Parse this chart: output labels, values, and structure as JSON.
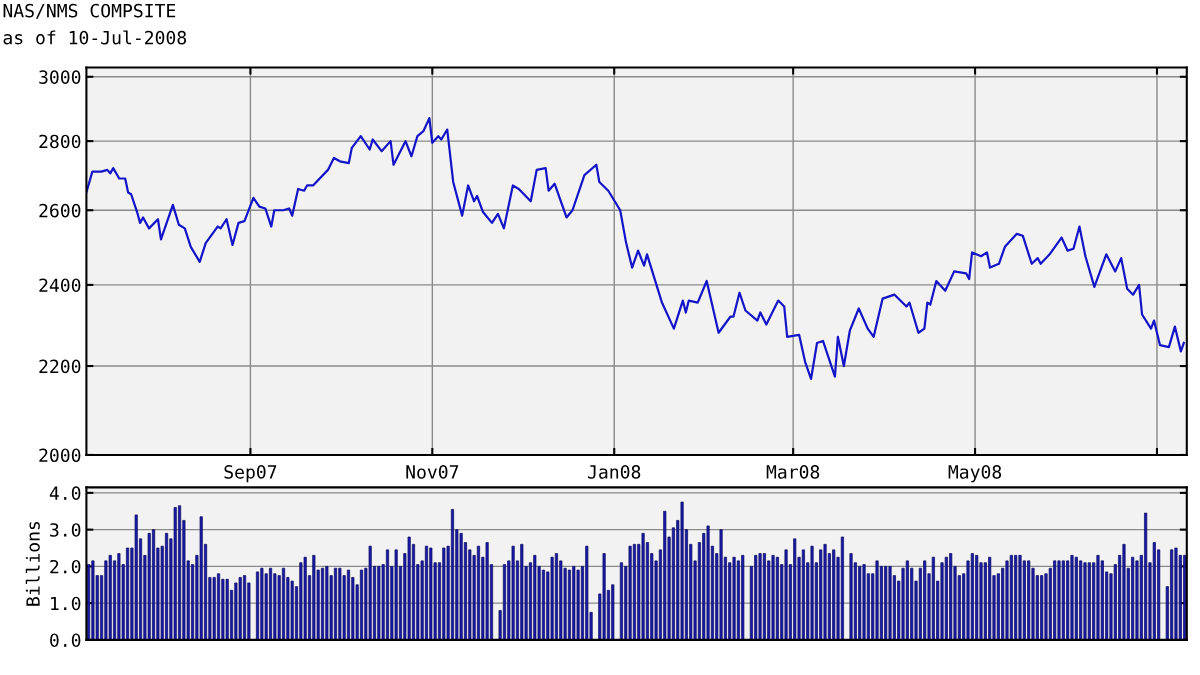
{
  "chart_data": [
    {
      "type": "line",
      "title": "NAS/NMS COMPSITE",
      "subtitle": "as of 10-Jul-2008",
      "color": "#1414c8",
      "log": true,
      "grid": true,
      "xlim": [
        "2007-07-08",
        "2008-07-11"
      ],
      "xticks": [
        {
          "value": "2007-09-01",
          "label": "Sep07"
        },
        {
          "value": "2007-11-01",
          "label": "Nov07"
        },
        {
          "value": "2008-01-01",
          "label": "Jan08"
        },
        {
          "value": "2008-03-01",
          "label": "Mar08"
        },
        {
          "value": "2008-05-01",
          "label": "May08"
        },
        {
          "value": "2008-07-01",
          "label": null
        }
      ],
      "ylim": [
        2000,
        3030
      ],
      "yticks": [
        2000,
        2200,
        2400,
        2600,
        2800,
        3000
      ],
      "x": [
        "2007-07-08",
        "2007-07-10",
        "2007-07-13",
        "2007-07-15",
        "2007-07-16",
        "2007-07-17",
        "2007-07-19",
        "2007-07-21",
        "2007-07-22",
        "2007-07-23",
        "2007-07-25",
        "2007-07-26",
        "2007-07-27",
        "2007-07-29",
        "2007-08-01",
        "2007-08-02",
        "2007-08-06",
        "2007-08-08",
        "2007-08-10",
        "2007-08-12",
        "2007-08-15",
        "2007-08-17",
        "2007-08-21",
        "2007-08-22",
        "2007-08-24",
        "2007-08-26",
        "2007-08-28",
        "2007-08-30",
        "2007-09-02",
        "2007-09-04",
        "2007-09-06",
        "2007-09-08",
        "2007-09-09",
        "2007-09-12",
        "2007-09-14",
        "2007-09-15",
        "2007-09-17",
        "2007-09-19",
        "2007-09-20",
        "2007-09-22",
        "2007-09-27",
        "2007-09-29",
        "2007-10-01",
        "2007-10-04",
        "2007-10-05",
        "2007-10-08",
        "2007-10-11",
        "2007-10-12",
        "2007-10-15",
        "2007-10-18",
        "2007-10-19",
        "2007-10-23",
        "2007-10-25",
        "2007-10-27",
        "2007-10-29",
        "2007-10-31",
        "2007-11-01",
        "2007-11-03",
        "2007-11-04",
        "2007-11-06",
        "2007-11-08",
        "2007-11-11",
        "2007-11-13",
        "2007-11-15",
        "2007-11-16",
        "2007-11-18",
        "2007-11-21",
        "2007-11-23",
        "2007-11-25",
        "2007-11-28",
        "2007-11-30",
        "2007-12-04",
        "2007-12-06",
        "2007-12-09",
        "2007-12-10",
        "2007-12-12",
        "2007-12-16",
        "2007-12-18",
        "2007-12-22",
        "2007-12-26",
        "2007-12-27",
        "2007-12-30",
        "2008-01-03",
        "2008-01-05",
        "2008-01-07",
        "2008-01-09",
        "2008-01-11",
        "2008-01-12",
        "2008-01-17",
        "2008-01-21",
        "2008-01-24",
        "2008-01-25",
        "2008-01-26",
        "2008-01-29",
        "2008-02-01",
        "2008-02-05",
        "2008-02-09",
        "2008-02-10",
        "2008-02-12",
        "2008-02-14",
        "2008-02-18",
        "2008-02-19",
        "2008-02-21",
        "2008-02-25",
        "2008-02-27",
        "2008-02-28",
        "2008-03-03",
        "2008-03-05",
        "2008-03-07",
        "2008-03-09",
        "2008-03-11",
        "2008-03-15",
        "2008-03-16",
        "2008-03-18",
        "2008-03-20",
        "2008-03-23",
        "2008-03-26",
        "2008-03-28",
        "2008-03-31",
        "2008-04-04",
        "2008-04-08",
        "2008-04-09",
        "2008-04-12",
        "2008-04-14",
        "2008-04-15",
        "2008-04-16",
        "2008-04-18",
        "2008-04-21",
        "2008-04-24",
        "2008-04-28",
        "2008-04-29",
        "2008-04-30",
        "2008-05-03",
        "2008-05-05",
        "2008-05-06",
        "2008-05-09",
        "2008-05-11",
        "2008-05-15",
        "2008-05-17",
        "2008-05-20",
        "2008-05-22",
        "2008-05-23",
        "2008-05-26",
        "2008-05-30",
        "2008-06-01",
        "2008-06-03",
        "2008-06-05",
        "2008-06-07",
        "2008-06-10",
        "2008-06-14",
        "2008-06-17",
        "2008-06-19",
        "2008-06-21",
        "2008-06-23",
        "2008-06-25",
        "2008-06-26",
        "2008-06-29",
        "2008-06-30",
        "2008-07-02",
        "2008-07-05",
        "2008-07-07",
        "2008-07-09",
        "2008-07-10"
      ],
      "values": [
        2650,
        2710,
        2710,
        2715,
        2705,
        2720,
        2690,
        2690,
        2650,
        2645,
        2595,
        2565,
        2580,
        2550,
        2575,
        2520,
        2615,
        2560,
        2550,
        2500,
        2460,
        2510,
        2555,
        2550,
        2575,
        2505,
        2565,
        2570,
        2635,
        2610,
        2605,
        2555,
        2600,
        2600,
        2605,
        2585,
        2660,
        2655,
        2670,
        2670,
        2715,
        2750,
        2740,
        2735,
        2780,
        2815,
        2775,
        2805,
        2770,
        2800,
        2730,
        2800,
        2755,
        2815,
        2830,
        2870,
        2795,
        2815,
        2805,
        2835,
        2680,
        2585,
        2670,
        2625,
        2640,
        2595,
        2565,
        2590,
        2550,
        2670,
        2660,
        2625,
        2715,
        2720,
        2655,
        2675,
        2580,
        2600,
        2700,
        2730,
        2680,
        2655,
        2600,
        2510,
        2445,
        2490,
        2450,
        2480,
        2355,
        2290,
        2360,
        2330,
        2360,
        2355,
        2410,
        2280,
        2320,
        2320,
        2380,
        2335,
        2310,
        2330,
        2300,
        2360,
        2345,
        2270,
        2275,
        2210,
        2170,
        2255,
        2260,
        2175,
        2270,
        2200,
        2285,
        2340,
        2290,
        2270,
        2365,
        2375,
        2345,
        2355,
        2280,
        2290,
        2355,
        2350,
        2410,
        2385,
        2435,
        2430,
        2415,
        2485,
        2475,
        2485,
        2445,
        2455,
        2500,
        2535,
        2530,
        2455,
        2470,
        2455,
        2480,
        2525,
        2490,
        2495,
        2555,
        2475,
        2395,
        2480,
        2435,
        2470,
        2390,
        2375,
        2400,
        2325,
        2290,
        2310,
        2250,
        2245,
        2295,
        2235,
        2255
      ]
    },
    {
      "type": "bar",
      "ylabel": "Billions",
      "color": "#1a1aa8",
      "grid": "y",
      "ylim": [
        0,
        4.15
      ],
      "yticks": [
        {
          "value": 0,
          "label": "0.0"
        },
        {
          "value": 1,
          "label": "1.0"
        },
        {
          "value": 2,
          "label": "2.0"
        },
        {
          "value": 3,
          "label": "3.0"
        },
        {
          "value": 4,
          "label": "4.0"
        }
      ],
      "categories": [
        null,
        null,
        null,
        null,
        null,
        null,
        null,
        null,
        null,
        null,
        null,
        null,
        null,
        null,
        null,
        null,
        null,
        null,
        null,
        null,
        null,
        null,
        null,
        null,
        null,
        null,
        null,
        null,
        null,
        null,
        null,
        null,
        null,
        null,
        null,
        null,
        null,
        null,
        null,
        null,
        null,
        null,
        null,
        null,
        null,
        null,
        null,
        null,
        null,
        null,
        null,
        null,
        null,
        null,
        null,
        null,
        null,
        null,
        null,
        null,
        null,
        null,
        null,
        null,
        null,
        null,
        null,
        null,
        null,
        null,
        null,
        null,
        null,
        null,
        null,
        null,
        null,
        null,
        null,
        null,
        null,
        null,
        null,
        null,
        null,
        null,
        null,
        null,
        null,
        null,
        null,
        null,
        null,
        null,
        null,
        null,
        null,
        null,
        null,
        null,
        null,
        null,
        null,
        null,
        null,
        null,
        null,
        null,
        null,
        null,
        null,
        null,
        null,
        null,
        null,
        null,
        null,
        null,
        null,
        null,
        null,
        null,
        null,
        null,
        null,
        null,
        null,
        null,
        null,
        null,
        null,
        null,
        null,
        null,
        null,
        null,
        null,
        null,
        null,
        null,
        null,
        null,
        null,
        null,
        null,
        null,
        null,
        null,
        null,
        null,
        null,
        null,
        null,
        null,
        null,
        null,
        null,
        null,
        null,
        null,
        null,
        null,
        null,
        null,
        null,
        null,
        null,
        null,
        null,
        null,
        null,
        null,
        null,
        null,
        null,
        null,
        null,
        null,
        null,
        null,
        null,
        null,
        null,
        null,
        null,
        null,
        null,
        null,
        null,
        null,
        null,
        null,
        null,
        null,
        null,
        null,
        null,
        null,
        null,
        null,
        null,
        null,
        null,
        null,
        null,
        null,
        null,
        null,
        null,
        null,
        null,
        null,
        null,
        null,
        null,
        null,
        null,
        null,
        null,
        null,
        null,
        null,
        null,
        null,
        null,
        null,
        null,
        null,
        null,
        null,
        null,
        null,
        null,
        null,
        null,
        null,
        null,
        null,
        null,
        null,
        null,
        null,
        null,
        null,
        null,
        null,
        null,
        null,
        null,
        null,
        null,
        null,
        null,
        null
      ],
      "values": [
        2.05,
        2.15,
        1.75,
        1.75,
        2.15,
        2.3,
        2.15,
        2.35,
        2.05,
        2.5,
        2.5,
        3.4,
        2.75,
        2.3,
        2.9,
        3.0,
        2.5,
        2.55,
        2.9,
        2.75,
        3.6,
        3.65,
        3.25,
        2.15,
        2.05,
        2.3,
        3.35,
        2.6,
        1.7,
        1.7,
        1.8,
        1.65,
        1.65,
        1.35,
        1.55,
        1.7,
        1.75,
        1.55,
        null,
        1.85,
        1.95,
        1.8,
        1.95,
        1.8,
        1.75,
        1.95,
        1.7,
        1.6,
        1.45,
        2.1,
        2.25,
        1.75,
        2.3,
        1.9,
        1.95,
        2.0,
        1.75,
        1.95,
        1.95,
        1.75,
        1.9,
        1.7,
        1.5,
        1.9,
        1.95,
        2.55,
        2.0,
        2.0,
        2.05,
        2.45,
        2.0,
        2.45,
        2.0,
        2.35,
        2.8,
        2.6,
        2.05,
        2.15,
        2.55,
        2.5,
        2.1,
        2.1,
        2.5,
        2.55,
        3.55,
        3.0,
        2.9,
        2.65,
        2.45,
        2.3,
        2.55,
        2.25,
        2.65,
        2.05,
        null,
        0.8,
        2.05,
        2.15,
        2.55,
        2.15,
        2.6,
        2.0,
        2.1,
        2.3,
        2.0,
        1.9,
        1.85,
        2.25,
        2.35,
        2.15,
        1.95,
        1.9,
        2.0,
        1.9,
        2.0,
        2.55,
        0.75,
        null,
        1.25,
        2.35,
        1.35,
        1.5,
        null,
        2.1,
        2.0,
        2.55,
        2.6,
        2.6,
        2.9,
        2.65,
        2.35,
        2.15,
        2.45,
        3.5,
        2.8,
        3.05,
        3.25,
        3.75,
        3.0,
        2.6,
        2.15,
        2.65,
        2.9,
        3.1,
        2.55,
        2.35,
        3.0,
        2.25,
        2.1,
        2.25,
        2.15,
        2.3,
        null,
        2.0,
        2.3,
        2.35,
        2.35,
        2.15,
        2.3,
        2.25,
        2.05,
        2.45,
        2.05,
        2.75,
        2.25,
        2.45,
        2.1,
        2.55,
        2.1,
        2.45,
        2.6,
        2.35,
        2.45,
        2.25,
        2.8,
        null,
        2.35,
        2.1,
        2.0,
        2.05,
        1.8,
        1.8,
        2.15,
        2.0,
        2.0,
        2.0,
        1.75,
        1.6,
        1.95,
        2.15,
        1.95,
        1.6,
        1.95,
        2.15,
        1.8,
        2.25,
        1.6,
        2.1,
        2.25,
        2.35,
        2.0,
        1.75,
        1.8,
        2.15,
        2.35,
        2.3,
        2.1,
        2.1,
        2.25,
        1.75,
        1.8,
        1.95,
        2.15,
        2.3,
        2.3,
        2.3,
        2.15,
        2.15,
        1.95,
        1.75,
        1.75,
        1.8,
        1.95,
        2.15,
        2.15,
        2.15,
        2.15,
        2.3,
        2.25,
        2.15,
        2.1,
        2.1,
        2.1,
        2.3,
        2.15,
        1.85,
        1.8,
        2.05,
        2.3,
        2.6,
        1.95,
        2.25,
        2.15,
        2.3,
        3.45,
        2.1,
        2.65,
        2.45,
        null,
        1.45,
        2.45,
        2.5,
        2.3,
        2.3
      ]
    }
  ]
}
